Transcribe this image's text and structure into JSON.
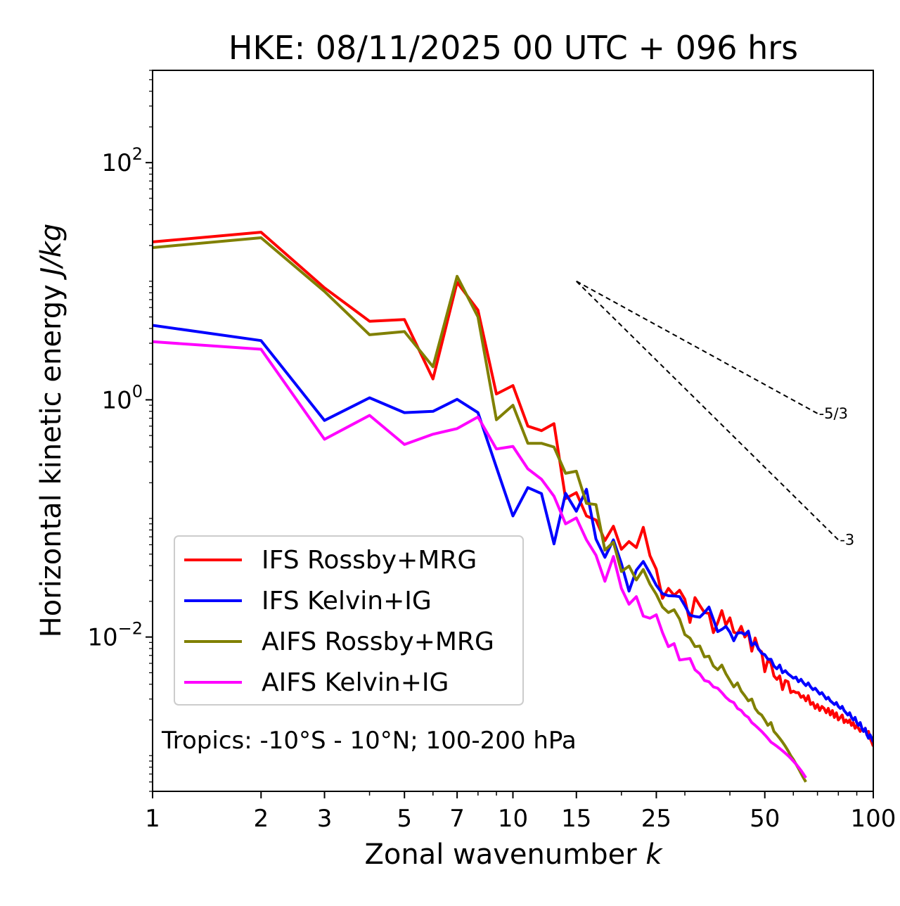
{
  "chart_data": {
    "type": "line",
    "title": "HKE: 08/11/2025 00 UTC + 096 hrs",
    "xlabel": "Zonal wavenumber",
    "xlabel_var": "k",
    "ylabel": "Horizontal kinetic energy",
    "ylabel_unit": "J/kg",
    "xscale": "log",
    "yscale": "log",
    "xlim": [
      1,
      100
    ],
    "ylim": [
      0.0005,
      600
    ],
    "xticks": [
      1,
      2,
      3,
      5,
      7,
      10,
      15,
      25,
      50,
      100
    ],
    "xtick_labels": [
      "1",
      "2",
      "3",
      "5",
      "7",
      "10",
      "15",
      "25",
      "50",
      "100"
    ],
    "yticks": [
      {
        "value": 100,
        "base": "10",
        "exp": "2"
      },
      {
        "value": 1,
        "base": "10",
        "exp": "0"
      },
      {
        "value": 0.01,
        "base": "10",
        "exp": "−2"
      }
    ],
    "legend_position": "lower-left",
    "annotation": "Tropics: -10°S - 10°N; 100-200 hPa",
    "reference_lines": [
      {
        "label": "-5/3",
        "slope": -1.6667,
        "k_start": 15,
        "k_end": 70,
        "e_start": 10.0
      },
      {
        "label": "-3",
        "slope": -3,
        "k_start": 15,
        "k_end": 80,
        "e_start": 10.0
      }
    ],
    "series": [
      {
        "name": "IFS Rossby+MRG",
        "color": "#ff0000",
        "x": [
          1,
          2,
          3,
          4,
          5,
          6,
          7,
          8,
          9,
          10,
          11,
          12,
          13,
          14,
          15,
          16,
          17,
          18,
          19,
          20,
          21,
          22,
          23,
          24,
          25,
          26,
          27,
          28,
          29,
          30,
          31,
          32,
          33,
          34,
          35,
          36,
          37,
          38,
          39,
          40,
          41,
          42,
          43,
          44,
          45,
          46,
          47,
          48,
          49,
          50,
          51,
          52,
          53,
          54,
          55,
          56,
          57,
          58,
          59,
          60,
          61,
          62,
          63,
          64,
          65,
          66,
          67,
          68,
          69,
          70,
          71,
          72,
          73,
          74,
          75,
          76,
          77,
          78,
          79,
          80,
          81,
          82,
          83,
          84,
          85,
          86,
          87,
          88,
          89,
          90,
          91,
          92,
          93,
          94,
          95,
          96,
          97,
          98,
          99,
          100
        ],
        "y": [
          21.46,
          25.9,
          8.8,
          4.6,
          4.75,
          1.5,
          9.8,
          5.7,
          1.12,
          1.32,
          0.6,
          0.55,
          0.63,
          0.147,
          0.165,
          0.105,
          0.097,
          0.065,
          0.086,
          0.0549,
          0.0638,
          0.0568,
          0.0841,
          0.0485,
          0.0372,
          0.0212,
          0.0257,
          0.0225,
          0.0248,
          0.0208,
          0.0133,
          0.0215,
          0.0185,
          0.0161,
          0.0158,
          0.0109,
          0.0132,
          0.0167,
          0.0126,
          0.0145,
          0.011,
          0.0107,
          0.0123,
          0.01,
          0.0109,
          0.0076,
          0.0098,
          0.0079,
          0.0075,
          0.0051,
          0.0064,
          0.006,
          0.0047,
          0.0044,
          0.0047,
          0.0036,
          0.0043,
          0.0042,
          0.0034,
          0.0035,
          0.0034,
          0.0034,
          0.0031,
          0.0032,
          0.0029,
          0.0032,
          0.0027,
          0.0028,
          0.0025,
          0.0027,
          0.0024,
          0.0026,
          0.0025,
          0.0023,
          0.0025,
          0.0022,
          0.0024,
          0.0021,
          0.0023,
          0.002,
          0.0021,
          0.0022,
          0.0019,
          0.002,
          0.0019,
          0.002,
          0.0018,
          0.0019,
          0.0017,
          0.0018,
          0.0017,
          0.0016,
          0.0017,
          0.0016,
          0.0017,
          0.0015,
          0.0016,
          0.0014,
          0.0013,
          0.0012
        ]
      },
      {
        "name": "IFS Kelvin+IG",
        "color": "#0000ff",
        "x": [
          1,
          2,
          3,
          4,
          5,
          6,
          7,
          8,
          9,
          10,
          11,
          12,
          13,
          14,
          15,
          16,
          17,
          18,
          19,
          20,
          21,
          22,
          23,
          24,
          25,
          26,
          27,
          28,
          29,
          30,
          31,
          32,
          33,
          34,
          35,
          36,
          37,
          38,
          39,
          40,
          41,
          42,
          43,
          44,
          45,
          46,
          47,
          48,
          49,
          50,
          51,
          52,
          53,
          54,
          55,
          56,
          57,
          58,
          59,
          60,
          61,
          62,
          63,
          64,
          65,
          66,
          67,
          68,
          69,
          70,
          71,
          72,
          73,
          74,
          75,
          76,
          77,
          78,
          79,
          80,
          81,
          82,
          83,
          84,
          85,
          86,
          87,
          88,
          89,
          90,
          91,
          92,
          93,
          94,
          95,
          96,
          97,
          98,
          99,
          100
        ],
        "y": [
          4.25,
          3.16,
          0.67,
          1.04,
          0.78,
          0.8,
          1.01,
          0.78,
          0.27,
          0.105,
          0.182,
          0.162,
          0.061,
          0.163,
          0.115,
          0.176,
          0.067,
          0.047,
          0.066,
          0.0416,
          0.0244,
          0.0366,
          0.0433,
          0.0345,
          0.0273,
          0.0232,
          0.0223,
          0.0222,
          0.0219,
          0.0184,
          0.0153,
          0.0149,
          0.0147,
          0.0161,
          0.0179,
          0.0141,
          0.0111,
          0.0116,
          0.0123,
          0.011,
          0.0093,
          0.0108,
          0.0109,
          0.0105,
          0.0112,
          0.0085,
          0.009,
          0.008,
          0.0073,
          0.0071,
          0.0065,
          0.0065,
          0.0057,
          0.0054,
          0.0058,
          0.005,
          0.0052,
          0.0049,
          0.0047,
          0.0045,
          0.0046,
          0.0042,
          0.0044,
          0.0041,
          0.0039,
          0.0041,
          0.0038,
          0.0036,
          0.0037,
          0.0035,
          0.0033,
          0.0034,
          0.0032,
          0.003,
          0.0031,
          0.0029,
          0.0028,
          0.0027,
          0.0028,
          0.0026,
          0.0025,
          0.0026,
          0.0024,
          0.0023,
          0.0022,
          0.0023,
          0.0021,
          0.002,
          0.0021,
          0.0019,
          0.0018,
          0.0019,
          0.0017,
          0.0016,
          0.0017,
          0.0015,
          0.0014,
          0.0015,
          0.0014,
          0.0013
        ]
      },
      {
        "name": "AIFS Rossby+MRG",
        "color": "#808000",
        "x": [
          1,
          2,
          3,
          4,
          5,
          6,
          7,
          8,
          9,
          10,
          11,
          12,
          13,
          14,
          15,
          16,
          17,
          18,
          19,
          20,
          21,
          22,
          23,
          24,
          25,
          26,
          27,
          28,
          29,
          30,
          31,
          32,
          33,
          34,
          35,
          36,
          37,
          38,
          39,
          40,
          41,
          42,
          43,
          44,
          45,
          46,
          47,
          48,
          49,
          50,
          51,
          52,
          53,
          54,
          55,
          56,
          57,
          58,
          59,
          60,
          61,
          62,
          63,
          64,
          65
        ],
        "y": [
          19.2,
          23.26,
          8.2,
          3.54,
          3.76,
          1.9,
          11.0,
          5.0,
          0.68,
          0.9,
          0.43,
          0.43,
          0.4,
          0.24,
          0.25,
          0.134,
          0.131,
          0.054,
          0.063,
          0.0357,
          0.0397,
          0.0303,
          0.0371,
          0.0279,
          0.0229,
          0.0179,
          0.0161,
          0.017,
          0.0142,
          0.0105,
          0.0098,
          0.0083,
          0.0084,
          0.0068,
          0.0069,
          0.0057,
          0.0053,
          0.0058,
          0.0049,
          0.0043,
          0.0038,
          0.0041,
          0.0035,
          0.0032,
          0.0029,
          0.003,
          0.0025,
          0.0023,
          0.0022,
          0.002,
          0.0018,
          0.0019,
          0.0016,
          0.0015,
          0.0014,
          0.0013,
          0.0012,
          0.0011,
          0.001,
          0.00093,
          0.00085,
          0.00078,
          0.00071,
          0.00065,
          0.0006
        ]
      },
      {
        "name": "AIFS Kelvin+IG",
        "color": "#ff00ff",
        "x": [
          1,
          2,
          3,
          4,
          5,
          6,
          7,
          8,
          9,
          10,
          11,
          12,
          13,
          14,
          15,
          16,
          17,
          18,
          19,
          20,
          21,
          22,
          23,
          24,
          25,
          26,
          27,
          28,
          29,
          30,
          31,
          32,
          33,
          34,
          35,
          36,
          37,
          38,
          39,
          40,
          41,
          42,
          43,
          44,
          45,
          46,
          47,
          48,
          49,
          50,
          51,
          52,
          53,
          54,
          55,
          56,
          57,
          58,
          59,
          60,
          61,
          62,
          63,
          64,
          65
        ],
        "y": [
          3.09,
          2.67,
          0.465,
          0.74,
          0.42,
          0.513,
          0.572,
          0.717,
          0.385,
          0.405,
          0.262,
          0.214,
          0.154,
          0.09,
          0.101,
          0.066,
          0.049,
          0.0295,
          0.0478,
          0.0257,
          0.0189,
          0.0219,
          0.015,
          0.0144,
          0.0154,
          0.0109,
          0.0083,
          0.0088,
          0.0064,
          0.0065,
          0.0066,
          0.0053,
          0.0049,
          0.0043,
          0.0042,
          0.0038,
          0.0037,
          0.0034,
          0.0031,
          0.0029,
          0.0028,
          0.0025,
          0.0024,
          0.0022,
          0.0021,
          0.0019,
          0.0018,
          0.0017,
          0.0016,
          0.0015,
          0.0014,
          0.0013,
          0.00125,
          0.0012,
          0.00115,
          0.0011,
          0.00105,
          0.001,
          0.00095,
          0.0009,
          0.00085,
          0.0008,
          0.00075,
          0.0007,
          0.00065
        ]
      }
    ]
  }
}
